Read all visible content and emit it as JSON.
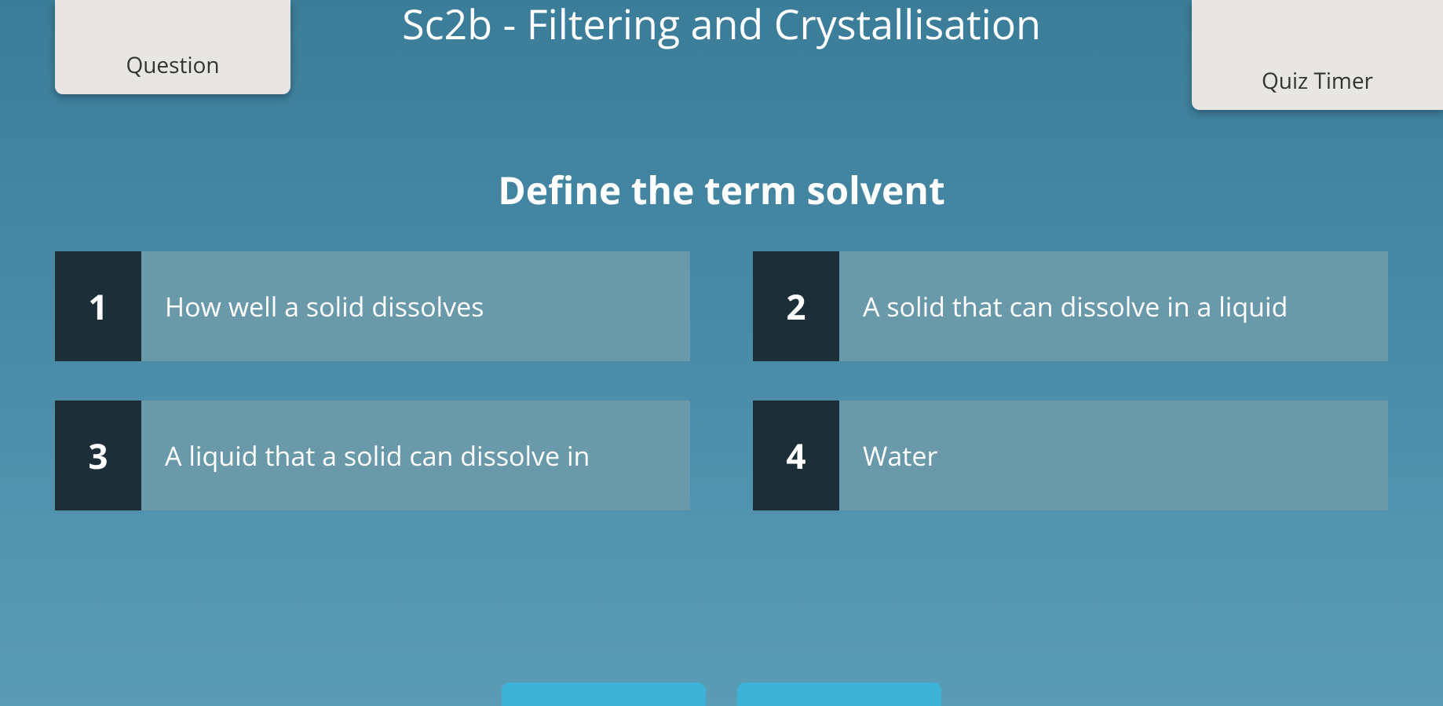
{
  "header": {
    "question_pill_label": "Question",
    "timer_pill_label": "Quiz Timer",
    "topic_title": "Sc2b - Filtering and Crystallisation"
  },
  "question": {
    "prompt": "Define the term solvent"
  },
  "answers": [
    {
      "number": "1",
      "text": "How well a solid dissolves"
    },
    {
      "number": "2",
      "text": "A solid that can dissolve in a liquid"
    },
    {
      "number": "3",
      "text": "A liquid that a solid can dissolve in"
    },
    {
      "number": "4",
      "text": "Water"
    }
  ],
  "colors": {
    "background_top": "#3b7d99",
    "background_bottom": "#5a9bb5",
    "pill_bg": "#e8e6e2",
    "answer_number_bg": "#1c2e38",
    "answer_text_bg": "#6a99aa",
    "bottom_button_bg": "#3db1d6",
    "text_white": "#ffffff"
  },
  "typography": {
    "topic_title_fontsize": 52,
    "question_fontsize": 48,
    "answer_number_fontsize": 44,
    "answer_text_fontsize": 34,
    "pill_label_fontsize": 28
  }
}
